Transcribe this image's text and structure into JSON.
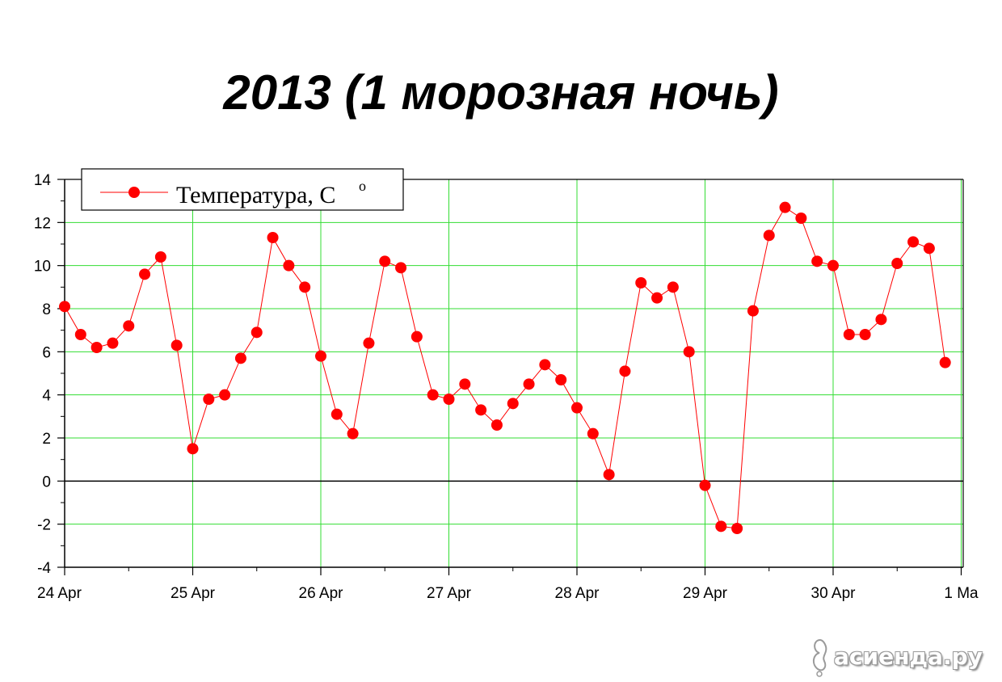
{
  "chart_data": {
    "type": "line",
    "title": "2013 (1 морозная ночь)",
    "xlabel": "",
    "ylabel": "",
    "ylim": [
      -4,
      14
    ],
    "yticks": [
      "-4",
      "-2",
      "0",
      "2",
      "4",
      "6",
      "8",
      "10",
      "12",
      "14"
    ],
    "xlim_days": [
      0,
      7
    ],
    "xticks": [
      "24 Apr",
      "25 Apr",
      "26 Apr",
      "27 Apr",
      "28 Apr",
      "29 Apr",
      "30 Apr",
      "1 Ma"
    ],
    "grid": true,
    "legend_position": "top-left",
    "legend": {
      "label": "Температура, C",
      "superscript": "o"
    },
    "series": [
      {
        "name": "Температура, C°",
        "color": "#ff0000",
        "x": [
          "24 Apr 00:00",
          "24 Apr 03:00",
          "24 Apr 06:00",
          "24 Apr 09:00",
          "24 Apr 12:00",
          "24 Apr 15:00",
          "24 Apr 18:00",
          "24 Apr 21:00",
          "25 Apr 00:00",
          "25 Apr 03:00",
          "25 Apr 06:00",
          "25 Apr 09:00",
          "25 Apr 12:00",
          "25 Apr 15:00",
          "25 Apr 18:00",
          "25 Apr 21:00",
          "26 Apr 00:00",
          "26 Apr 03:00",
          "26 Apr 06:00",
          "26 Apr 09:00",
          "26 Apr 12:00",
          "26 Apr 15:00",
          "26 Apr 18:00",
          "26 Apr 21:00",
          "27 Apr 00:00",
          "27 Apr 03:00",
          "27 Apr 06:00",
          "27 Apr 09:00",
          "27 Apr 12:00",
          "27 Apr 15:00",
          "27 Apr 18:00",
          "27 Apr 21:00",
          "28 Apr 00:00",
          "28 Apr 03:00",
          "28 Apr 06:00",
          "28 Apr 09:00",
          "28 Apr 12:00",
          "28 Apr 15:00",
          "28 Apr 18:00",
          "28 Apr 21:00",
          "29 Apr 00:00",
          "29 Apr 03:00",
          "29 Apr 06:00",
          "29 Apr 09:00",
          "29 Apr 12:00",
          "29 Apr 15:00",
          "29 Apr 18:00",
          "29 Apr 21:00",
          "30 Apr 00:00",
          "30 Apr 03:00",
          "30 Apr 06:00",
          "30 Apr 09:00",
          "30 Apr 12:00",
          "30 Apr 15:00",
          "30 Apr 18:00",
          "30 Apr 21:00"
        ],
        "values": [
          8.1,
          6.8,
          6.2,
          6.4,
          7.2,
          9.6,
          10.4,
          6.3,
          1.5,
          3.8,
          4.0,
          5.7,
          6.9,
          11.3,
          10.0,
          9.0,
          5.8,
          3.1,
          2.2,
          6.4,
          10.2,
          9.9,
          6.7,
          4.0,
          3.8,
          4.5,
          3.3,
          2.6,
          3.6,
          4.5,
          5.4,
          4.7,
          3.4,
          2.2,
          0.3,
          5.1,
          9.2,
          8.5,
          9.0,
          6.0,
          -0.2,
          -2.1,
          -2.2,
          7.9,
          11.4,
          12.7,
          12.2,
          10.2,
          10.0,
          6.8,
          6.8,
          7.5,
          10.1,
          11.1,
          10.8,
          5.5
        ]
      }
    ]
  },
  "watermark": {
    "text": "асиенда.ру",
    "icon": "acienda-logo-icon"
  }
}
